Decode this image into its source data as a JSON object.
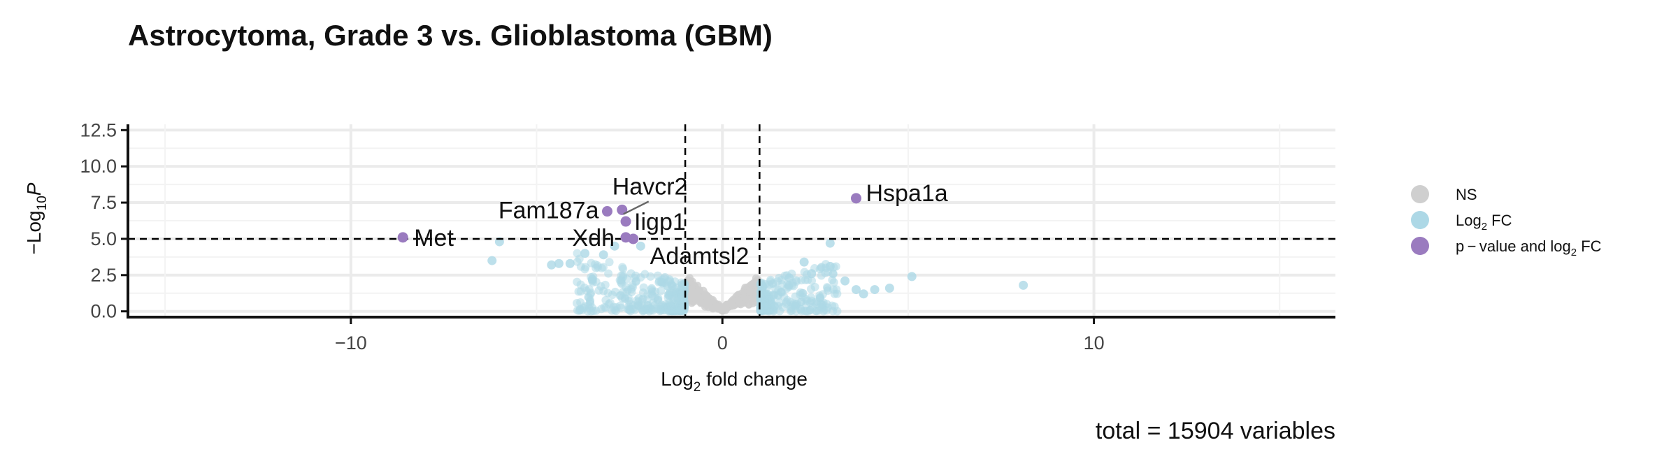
{
  "chart_data": {
    "type": "scatter",
    "title": "Astrocytoma, Grade 3 vs. Glioblastoma (GBM)",
    "xlabel": {
      "main": "Log",
      "sub": "2",
      "rest": " fold change"
    },
    "ylabel": {
      "prefix": "−Log",
      "sub": "10",
      "italic": "P"
    },
    "xlim": [
      -16,
      16.5
    ],
    "ylim": [
      -0.4,
      12.9
    ],
    "x_ticks": [
      -10,
      0,
      10
    ],
    "x_tick_labels": [
      "−10",
      "0",
      "10"
    ],
    "y_ticks": [
      0,
      2.5,
      5,
      7.5,
      10,
      12.5
    ],
    "y_tick_labels": [
      "0.0",
      "2.5",
      "5.0",
      "7.5",
      "10.0",
      "12.5"
    ],
    "fc_cutoff": 1,
    "p_cutoff_log10": 5,
    "grid": true,
    "legend_position": "right",
    "legend": [
      {
        "key": "ns",
        "label": "NS",
        "color": "#cfcfcf"
      },
      {
        "key": "fc",
        "label": "Log",
        "sub": "2",
        "suffix": " FC",
        "color": "#add8e6"
      },
      {
        "key": "both",
        "label": "p − value and log",
        "sub": "2",
        "suffix": " FC",
        "color": "#9a7bbf"
      }
    ],
    "labeled_points": [
      {
        "name": "Met",
        "x": -8.6,
        "y": 5.1
      },
      {
        "name": "Fam187a",
        "x": -3.1,
        "y": 6.9
      },
      {
        "name": "Havcr2",
        "x": -2.7,
        "y": 7.0
      },
      {
        "name": "Iigp1",
        "x": -2.6,
        "y": 6.2
      },
      {
        "name": "Xdh",
        "x": -2.6,
        "y": 5.1
      },
      {
        "name": "Adamtsl2",
        "x": -2.4,
        "y": 5.0
      },
      {
        "name": "Hspa1a",
        "x": 3.6,
        "y": 7.8
      }
    ],
    "fc_outliers": [
      {
        "x": -6.2,
        "y": 3.5
      },
      {
        "x": -6.0,
        "y": 4.8
      },
      {
        "x": -4.6,
        "y": 3.2
      },
      {
        "x": -4.4,
        "y": 3.3
      },
      {
        "x": -4.1,
        "y": 3.3
      },
      {
        "x": -3.7,
        "y": 4.0
      },
      {
        "x": -3.2,
        "y": 3.9
      },
      {
        "x": -2.9,
        "y": 4.5
      },
      {
        "x": -3.5,
        "y": 2.2
      },
      {
        "x": -2.2,
        "y": 4.5
      },
      {
        "x": 2.9,
        "y": 3.1
      },
      {
        "x": 2.9,
        "y": 4.7
      },
      {
        "x": 2.2,
        "y": 3.4
      },
      {
        "x": 3.3,
        "y": 2.1
      },
      {
        "x": 3.6,
        "y": 1.5
      },
      {
        "x": 3.8,
        "y": 1.2
      },
      {
        "x": 4.1,
        "y": 1.5
      },
      {
        "x": 4.5,
        "y": 1.6
      },
      {
        "x": 5.1,
        "y": 2.4
      },
      {
        "x": 8.1,
        "y": 1.8
      },
      {
        "x": 1.8,
        "y": 2.3
      },
      {
        "x": 2.4,
        "y": 2.6
      }
    ],
    "total_variables": 15904
  },
  "caption": "total = 15904 variables"
}
